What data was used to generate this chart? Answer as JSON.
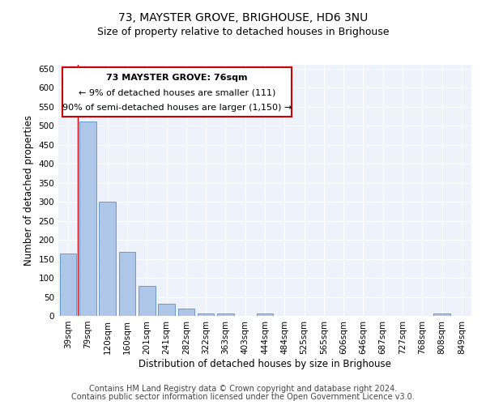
{
  "title": "73, MAYSTER GROVE, BRIGHOUSE, HD6 3NU",
  "subtitle": "Size of property relative to detached houses in Brighouse",
  "xlabel": "Distribution of detached houses by size in Brighouse",
  "ylabel": "Number of detached properties",
  "footer_line1": "Contains HM Land Registry data © Crown copyright and database right 2024.",
  "footer_line2": "Contains public sector information licensed under the Open Government Licence v3.0.",
  "annotation_line1": "73 MAYSTER GROVE: 76sqm",
  "annotation_line2": "← 9% of detached houses are smaller (111)",
  "annotation_line3": "90% of semi-detached houses are larger (1,150) →",
  "bar_categories": [
    "39sqm",
    "79sqm",
    "120sqm",
    "160sqm",
    "201sqm",
    "241sqm",
    "282sqm",
    "322sqm",
    "363sqm",
    "403sqm",
    "444sqm",
    "484sqm",
    "525sqm",
    "565sqm",
    "606sqm",
    "646sqm",
    "687sqm",
    "727sqm",
    "768sqm",
    "808sqm",
    "849sqm"
  ],
  "bar_values": [
    165,
    510,
    300,
    168,
    78,
    32,
    20,
    7,
    7,
    0,
    7,
    0,
    0,
    0,
    0,
    0,
    0,
    0,
    0,
    7,
    0
  ],
  "bar_color": "#aec6e8",
  "bar_edge_color": "#5a8fc2",
  "vline_color": "#cc0000",
  "ylim": [
    0,
    660
  ],
  "yticks": [
    0,
    50,
    100,
    150,
    200,
    250,
    300,
    350,
    400,
    450,
    500,
    550,
    600,
    650
  ],
  "bg_color": "#eef2fb",
  "grid_color": "#ffffff",
  "annotation_box_color": "#cc0000",
  "title_fontsize": 10,
  "subtitle_fontsize": 9,
  "axis_label_fontsize": 8.5,
  "tick_fontsize": 7.5,
  "footer_fontsize": 7
}
